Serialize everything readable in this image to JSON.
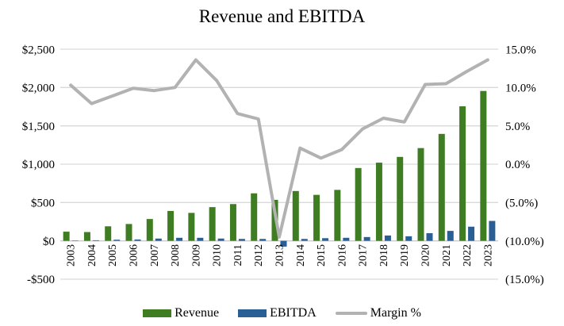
{
  "chart_data": {
    "type": "combo",
    "title": "Revenue and EBITDA",
    "categories": [
      "2003",
      "2004",
      "2005",
      "2006",
      "2007",
      "2008",
      "2009",
      "2010",
      "2011",
      "2012",
      "2013",
      "2014",
      "2015",
      "2016",
      "2017",
      "2018",
      "2019",
      "2020",
      "2021",
      "2022",
      "2023"
    ],
    "series": [
      {
        "name": "Revenue",
        "type": "bar",
        "axis": "left",
        "color": "#3e7d22",
        "values": [
          120,
          115,
          190,
          220,
          285,
          390,
          365,
          440,
          480,
          620,
          535,
          650,
          600,
          665,
          950,
          1020,
          1095,
          1210,
          1395,
          1755,
          1955
        ]
      },
      {
        "name": "EBITDA",
        "type": "bar",
        "axis": "left",
        "color": "#2a5f96",
        "values": [
          5,
          8,
          15,
          18,
          30,
          40,
          40,
          30,
          25,
          25,
          -75,
          25,
          35,
          40,
          50,
          70,
          60,
          100,
          130,
          185,
          260
        ]
      },
      {
        "name": "Margin %",
        "type": "line",
        "axis": "right",
        "color": "#b2b2b2",
        "values": [
          10.3,
          7.9,
          8.9,
          9.9,
          9.6,
          10.0,
          13.6,
          10.9,
          6.6,
          5.9,
          -9.5,
          2.1,
          0.8,
          1.9,
          4.6,
          6.0,
          5.5,
          10.4,
          10.5,
          12.1,
          13.6
        ]
      }
    ],
    "left_axis": {
      "tick_labels": [
        "$2,500",
        "$2,000",
        "$1,500",
        "$1,000",
        "$500",
        "$0",
        "-$500"
      ],
      "tick_values": [
        2500,
        2000,
        1500,
        1000,
        500,
        0,
        -500
      ],
      "ylim": [
        -500,
        2500
      ]
    },
    "right_axis": {
      "tick_labels": [
        "15.0%",
        "10.0%",
        "5.0%",
        "0.0%",
        "(5.0%)",
        "(10.0%)",
        "(15.0%)"
      ],
      "tick_values": [
        15,
        10,
        5,
        0,
        -5,
        -10,
        -15
      ],
      "ylim": [
        -15,
        15
      ]
    },
    "grid": "horizontal",
    "legend_position": "bottom",
    "colors": {
      "gridline": "#d9d9d9",
      "zero_axis": "#cccccc",
      "text": "#000000",
      "background": "#ffffff"
    }
  }
}
